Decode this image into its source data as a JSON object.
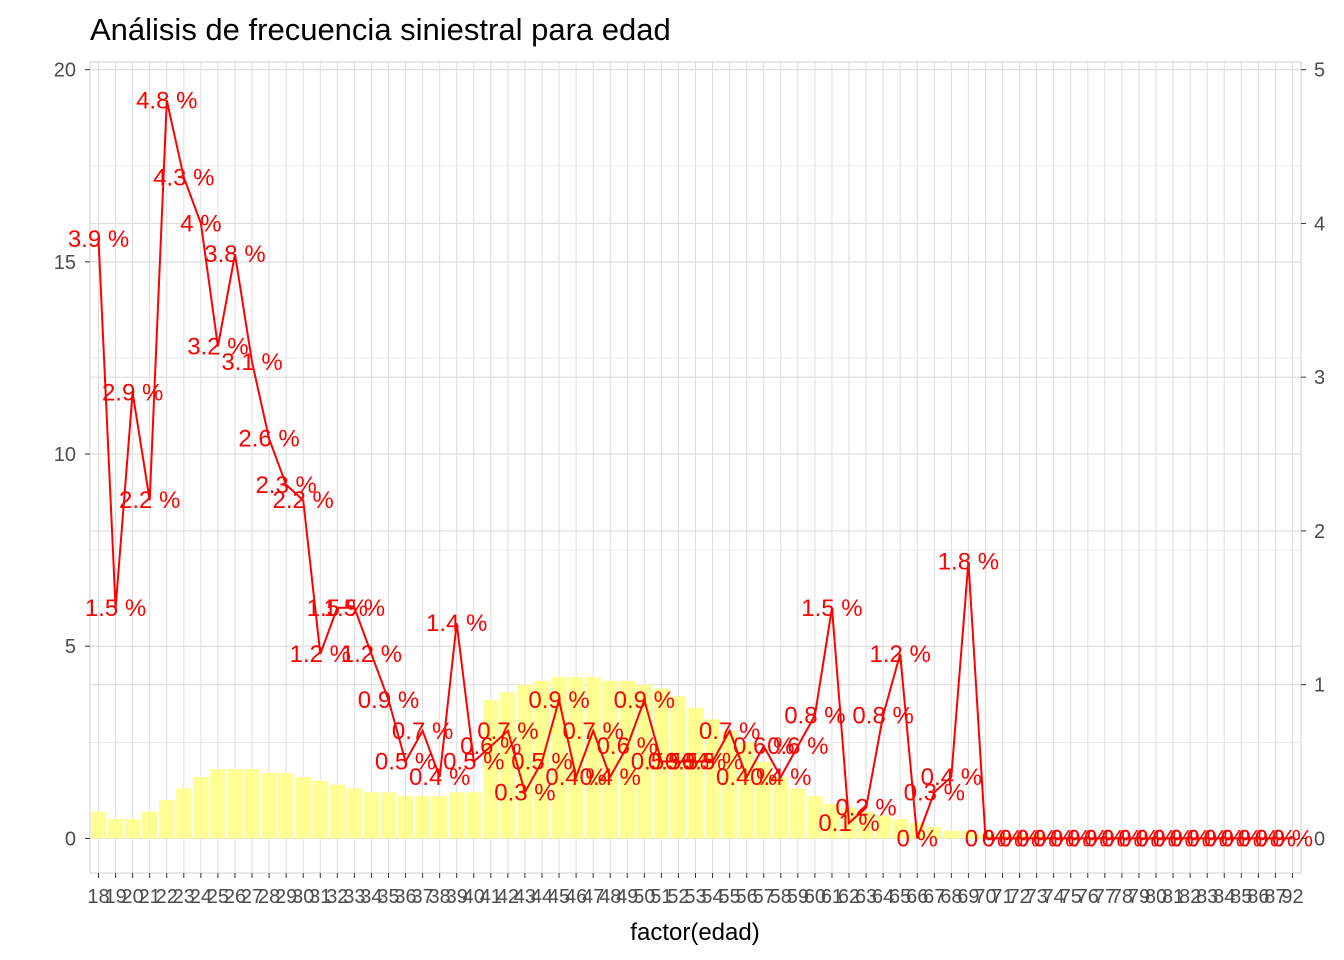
{
  "chart_data": {
    "type": "bar",
    "title": "Análisis de frecuencia siniestral para edad",
    "xlabel": "factor(edad)",
    "ylabel": "",
    "ylim": [
      -0.9,
      20.2
    ],
    "y2lim": [
      -0.225,
      5.05
    ],
    "yticks": [
      0,
      5,
      10,
      15,
      20
    ],
    "y2ticks": [
      0,
      1,
      2,
      3,
      4,
      5
    ],
    "grid": true,
    "colors": {
      "bars": "#ffff80",
      "line": "#ff0000",
      "grid": "#dedede",
      "panel_border": "#cfcfcf"
    },
    "categories": [
      "18",
      "19",
      "20",
      "21",
      "22",
      "23",
      "24",
      "25",
      "26",
      "27",
      "28",
      "29",
      "30",
      "31",
      "32",
      "33",
      "34",
      "35",
      "36",
      "37",
      "38",
      "39",
      "40",
      "41",
      "42",
      "43",
      "44",
      "45",
      "46",
      "47",
      "48",
      "49",
      "50",
      "51",
      "52",
      "53",
      "54",
      "55",
      "56",
      "57",
      "58",
      "59",
      "60",
      "61",
      "62",
      "63",
      "64",
      "65",
      "66",
      "67",
      "68",
      "69",
      "70",
      "71",
      "72",
      "73",
      "74",
      "75",
      "76",
      "77",
      "78",
      "79",
      "80",
      "81",
      "82",
      "83",
      "84",
      "85",
      "86",
      "87",
      "92"
    ],
    "series": [
      {
        "axis": "left",
        "values": [
          0.7,
          0.5,
          0.5,
          0.7,
          1.0,
          1.3,
          1.6,
          1.8,
          1.8,
          1.8,
          1.7,
          1.7,
          1.6,
          1.5,
          1.4,
          1.3,
          1.2,
          1.2,
          1.1,
          1.1,
          1.1,
          1.2,
          1.2,
          3.6,
          3.8,
          4.0,
          4.1,
          4.2,
          4.2,
          4.2,
          4.1,
          4.1,
          4.0,
          3.9,
          3.7,
          3.4,
          3.1,
          2.8,
          2.5,
          2.0,
          1.6,
          1.3,
          1.1,
          0.9,
          0.8,
          0.7,
          0.6,
          0.5,
          0.4,
          0.3,
          0.2,
          0.2,
          0.1,
          0.1,
          0.1,
          0.1,
          0,
          0,
          0,
          0,
          0,
          0,
          0,
          0,
          0,
          0,
          0,
          0,
          0,
          0,
          0
        ]
      },
      {
        "axis": "right",
        "values": [
          3.9,
          1.5,
          2.9,
          2.2,
          4.8,
          4.3,
          4.0,
          3.2,
          3.8,
          3.1,
          2.6,
          2.3,
          2.2,
          1.2,
          1.5,
          1.5,
          1.2,
          0.9,
          0.5,
          0.7,
          0.4,
          1.4,
          0.5,
          0.6,
          0.7,
          0.3,
          0.5,
          0.9,
          0.4,
          0.7,
          0.4,
          0.6,
          0.9,
          0.5,
          0.5,
          0.5,
          0.5,
          0.7,
          0.4,
          0.6,
          0.4,
          0.6,
          0.8,
          1.5,
          0.1,
          0.2,
          0.8,
          1.2,
          0.0,
          0.3,
          0.4,
          1.8,
          0,
          0,
          0,
          0,
          0,
          0,
          0,
          0,
          0,
          0,
          0,
          0,
          0,
          0,
          0,
          0,
          0,
          0,
          0
        ],
        "labels": [
          "3.9 %",
          "1.5 %",
          "2.9 %",
          "2.2 %",
          "4.8 %",
          "4.3 %",
          "4 %",
          "3.2 %",
          "3.8 %",
          "3.1 %",
          "2.6 %",
          "2.3 %",
          "2.2 %",
          "1.2 %",
          "1.5 %",
          "1.5 %",
          "1.2 %",
          "0.9 %",
          "0.5 %",
          "0.7 %",
          "0.4 %",
          "1.4 %",
          "0.5 %",
          "0.6 %",
          "0.7 %",
          "0.3 %",
          "0.5 %",
          "0.9 %",
          "0.4 %",
          "0.7 %",
          "0.4 %",
          "0.6 %",
          "0.9 %",
          "0.5 %",
          "0.5 %",
          "0.5 %",
          "0.5 %",
          "0.7 %",
          "0.4 %",
          "0.6 %",
          "0.4 %",
          "0.6 %",
          "0.8 %",
          "1.5 %",
          "0.1 %",
          "0.2 %",
          "0.8 %",
          "1.2 %",
          "0 %",
          "0.3 %",
          "0.4 %",
          "1.8 %",
          "0 %",
          "0 %",
          "0 %",
          "0 %",
          "0 %",
          "0 %",
          "0 %",
          "0 %",
          "0 %",
          "0 %",
          "0 %",
          "0 %",
          "0 %",
          "0 %",
          "0 %",
          "0 %",
          "0 %",
          "0 %",
          "0 %"
        ]
      }
    ]
  }
}
